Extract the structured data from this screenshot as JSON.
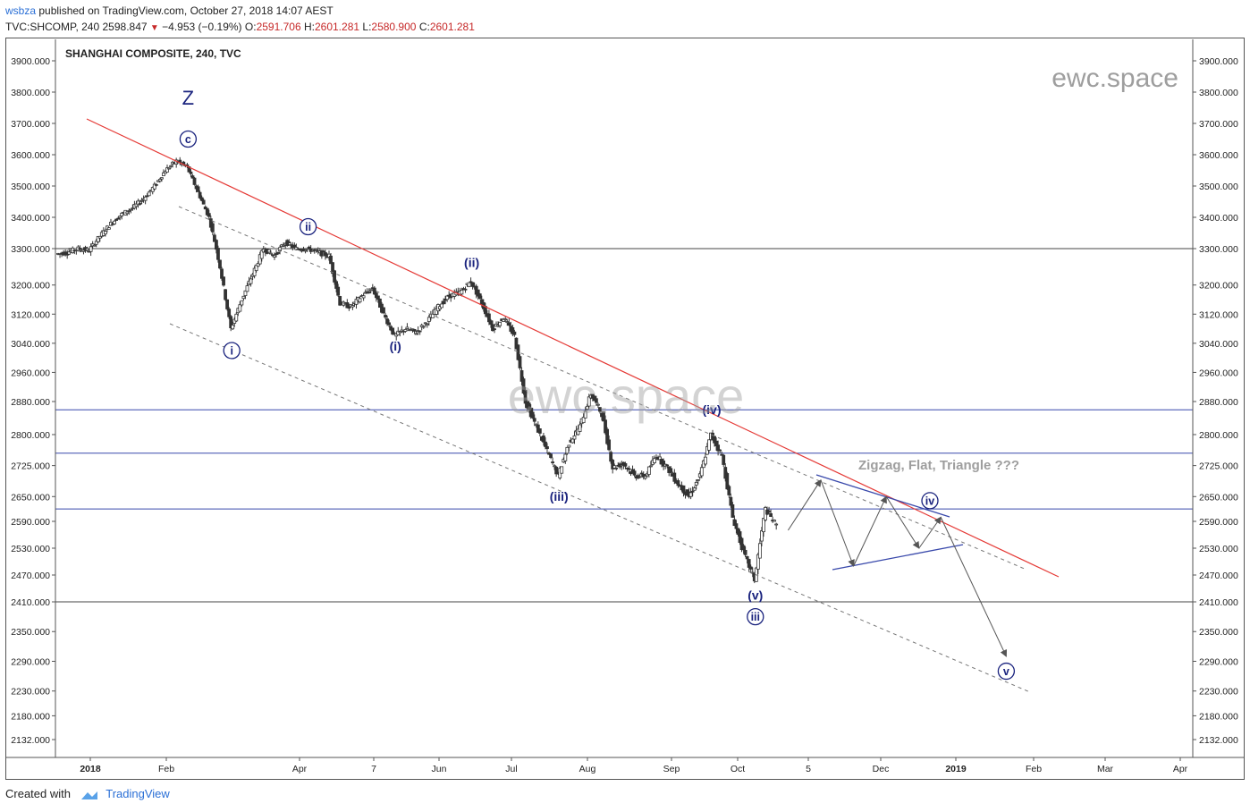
{
  "header": {
    "author": "wsbza",
    "published": "published on TradingView.com, October 27, 2018 14:07 AEST",
    "symbol": "TVC:SHCOMP, 240",
    "last": "2598.847",
    "change": "−4.953 (−0.19%)",
    "o_label": "O:",
    "o": "2591.706",
    "h_label": "H:",
    "h": "2601.281",
    "l_label": "L:",
    "l": "2580.900",
    "c_label": "C:",
    "c": "2601.281"
  },
  "footer": {
    "created": "Created with",
    "brand": "TradingView",
    "logo": "tradingview-cloud-icon"
  },
  "colors": {
    "trendline": "#e53935",
    "wave": "#1a237e",
    "hline_blue": "#3949ab",
    "projection": "#555555",
    "watermark": "#9e9e9e"
  },
  "chart_data": {
    "type": "candlestick",
    "title": "SHANGHAI COMPOSITE, 240, TVC",
    "watermark": "ewc.space",
    "annotation": "Zigzag, Flat, Triangle ???",
    "ylim": [
      2100,
      3950
    ],
    "y_ticks": [
      "3900.000",
      "3800.000",
      "3700.000",
      "3600.000",
      "3500.000",
      "3400.000",
      "3300.000",
      "3200.000",
      "3120.000",
      "3040.000",
      "2960.000",
      "2880.000",
      "2800.000",
      "2725.000",
      "2650.000",
      "2590.000",
      "2530.000",
      "2470.000",
      "2410.000",
      "2350.000",
      "2290.000",
      "2230.000",
      "2180.000",
      "2132.000"
    ],
    "x_ticks": [
      "2018",
      "Feb",
      "Apr",
      "7",
      "Jun",
      "Jul",
      "Aug",
      "Sep",
      "Oct",
      "5",
      "Dec",
      "2019",
      "Feb",
      "Mar",
      "Apr"
    ],
    "horizontal_levels": [
      {
        "price": 3300,
        "color": "#444444"
      },
      {
        "price": 2860,
        "color": "#3949ab"
      },
      {
        "price": 2755,
        "color": "#3949ab"
      },
      {
        "price": 2620,
        "color": "#3949ab"
      },
      {
        "price": 2410,
        "color": "#444444"
      }
    ],
    "price_path": [
      [
        0,
        3285
      ],
      [
        1,
        3290
      ],
      [
        2,
        3300
      ],
      [
        3,
        3295
      ],
      [
        4,
        3340
      ],
      [
        5,
        3380
      ],
      [
        6,
        3410
      ],
      [
        7,
        3430
      ],
      [
        8,
        3460
      ],
      [
        9,
        3500
      ],
      [
        10,
        3550
      ],
      [
        11,
        3580
      ],
      [
        12,
        3560
      ],
      [
        13,
        3480
      ],
      [
        14,
        3400
      ],
      [
        15,
        3250
      ],
      [
        16,
        3080
      ],
      [
        17,
        3160
      ],
      [
        18,
        3230
      ],
      [
        19,
        3300
      ],
      [
        20,
        3280
      ],
      [
        21,
        3320
      ],
      [
        22,
        3300
      ],
      [
        23,
        3300
      ],
      [
        24,
        3290
      ],
      [
        25,
        3280
      ],
      [
        26,
        3150
      ],
      [
        27,
        3140
      ],
      [
        28,
        3170
      ],
      [
        29,
        3190
      ],
      [
        30,
        3120
      ],
      [
        31,
        3060
      ],
      [
        32,
        3080
      ],
      [
        33,
        3070
      ],
      [
        34,
        3100
      ],
      [
        35,
        3140
      ],
      [
        36,
        3170
      ],
      [
        37,
        3180
      ],
      [
        38,
        3210
      ],
      [
        39,
        3150
      ],
      [
        40,
        3080
      ],
      [
        41,
        3110
      ],
      [
        42,
        3060
      ],
      [
        43,
        2880
      ],
      [
        44,
        2820
      ],
      [
        45,
        2760
      ],
      [
        46,
        2700
      ],
      [
        47,
        2780
      ],
      [
        48,
        2820
      ],
      [
        49,
        2900
      ],
      [
        50,
        2850
      ],
      [
        51,
        2720
      ],
      [
        52,
        2730
      ],
      [
        53,
        2700
      ],
      [
        54,
        2700
      ],
      [
        55,
        2750
      ],
      [
        56,
        2720
      ],
      [
        57,
        2680
      ],
      [
        58,
        2650
      ],
      [
        59,
        2700
      ],
      [
        60,
        2800
      ],
      [
        61,
        2750
      ],
      [
        62,
        2600
      ],
      [
        63,
        2520
      ],
      [
        64,
        2460
      ],
      [
        65,
        2620
      ],
      [
        66,
        2580
      ]
    ],
    "waves": [
      {
        "label": "Z",
        "x": 12,
        "price": 3760,
        "style": "plain"
      },
      {
        "label": "c",
        "x": 12,
        "price": 3650,
        "style": "circle"
      },
      {
        "label": "i",
        "x": 16,
        "price": 3020,
        "style": "circle"
      },
      {
        "label": "ii",
        "x": 23,
        "price": 3370,
        "style": "circle"
      },
      {
        "label": "(i)",
        "x": 31,
        "price": 3020,
        "style": "paren"
      },
      {
        "label": "(ii)",
        "x": 38,
        "price": 3250,
        "style": "paren"
      },
      {
        "label": "(iii)",
        "x": 46,
        "price": 2640,
        "style": "paren"
      },
      {
        "label": "(iv)",
        "x": 60,
        "price": 2850,
        "style": "paren"
      },
      {
        "label": "(v)",
        "x": 64,
        "price": 2415,
        "style": "paren"
      },
      {
        "label": "iii",
        "x": 64,
        "price": 2380,
        "style": "circle"
      },
      {
        "label": "iv",
        "x": 80,
        "price": 2640,
        "style": "circle"
      },
      {
        "label": "v",
        "x": 87,
        "price": 2270,
        "style": "circle"
      }
    ],
    "projection_path": [
      [
        67,
        2570
      ],
      [
        70,
        2690
      ],
      [
        73,
        2490
      ],
      [
        76,
        2650
      ],
      [
        79,
        2530
      ],
      [
        81,
        2600
      ],
      [
        87,
        2300
      ]
    ]
  }
}
